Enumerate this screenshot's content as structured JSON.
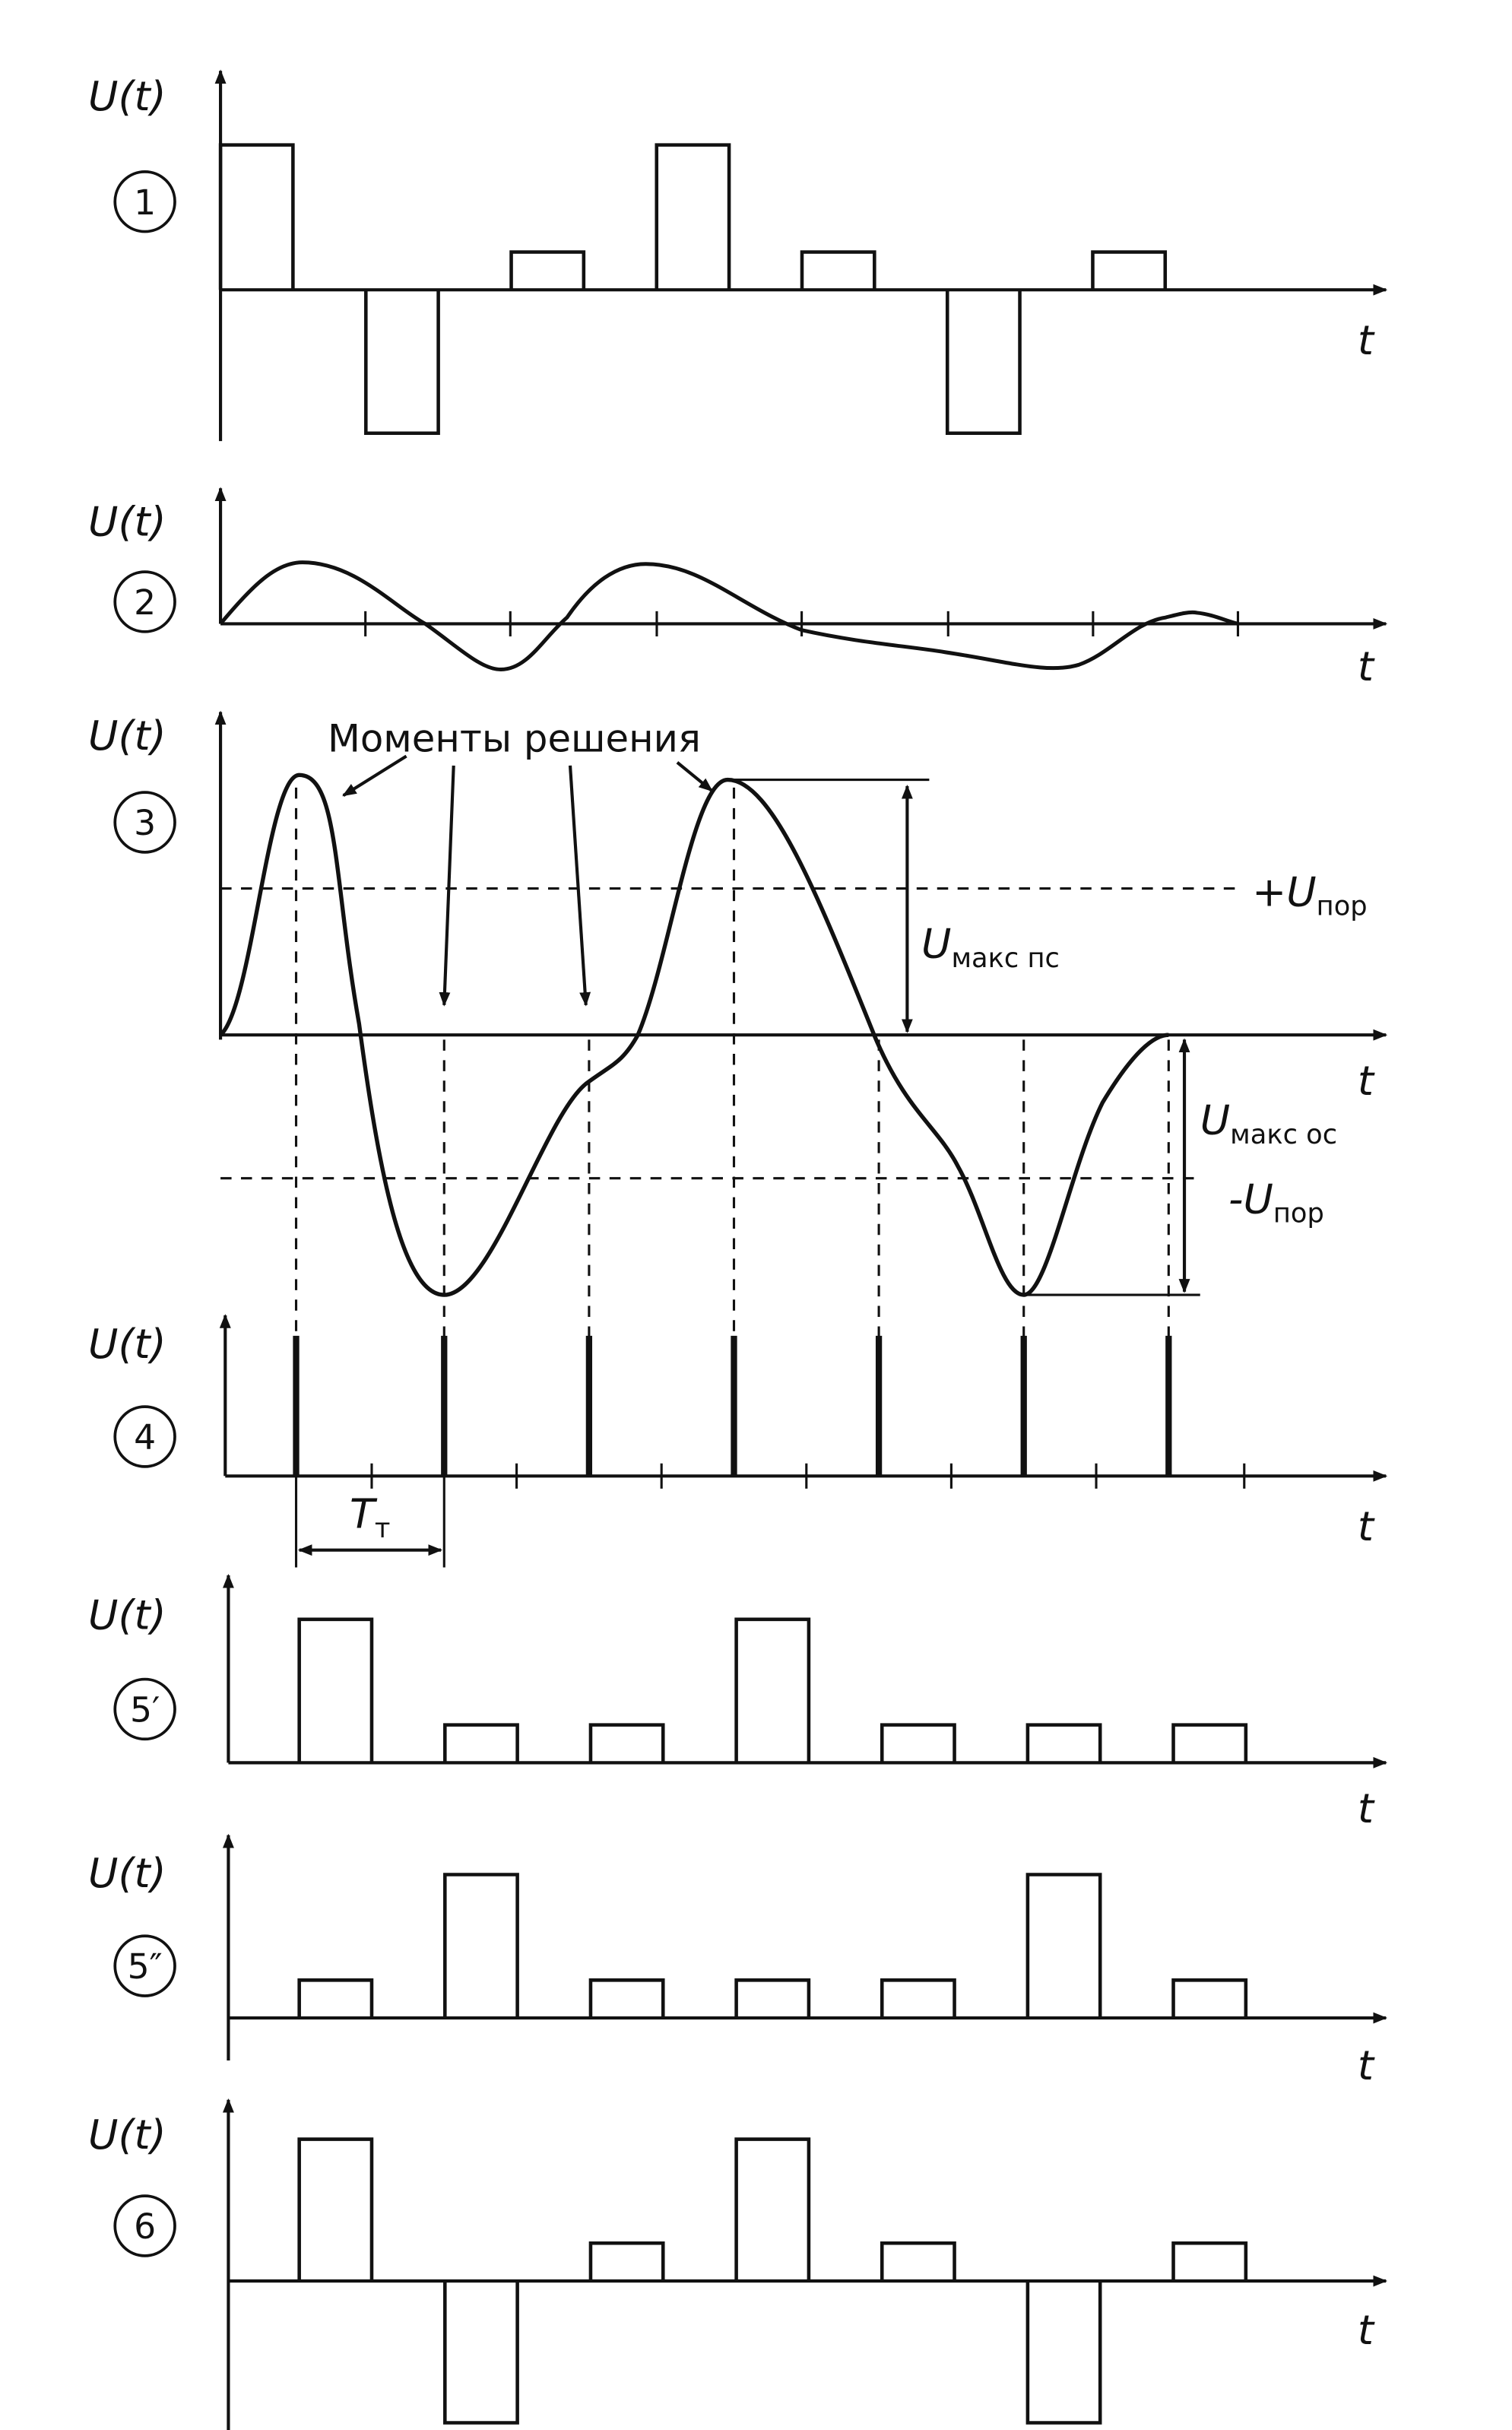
{
  "panels": [
    {
      "ylabel": "U(t)",
      "number": "1",
      "xlabel": "t"
    },
    {
      "ylabel": "U(t)",
      "number": "2",
      "xlabel": "t"
    },
    {
      "ylabel": "U(t)",
      "number": "3",
      "xlabel": "t"
    },
    {
      "ylabel": "U(t)",
      "number": "4",
      "xlabel": "t"
    },
    {
      "ylabel": "U(t)",
      "number": "5′",
      "xlabel": "t"
    },
    {
      "ylabel": "U(t)",
      "number": "5″",
      "xlabel": "t"
    },
    {
      "ylabel": "U(t)",
      "number": "6",
      "xlabel": "t"
    }
  ],
  "annotations": {
    "decision_moments": "Моменты решения",
    "plus_threshold": {
      "main": "+U",
      "sub": "пор"
    },
    "minus_threshold": {
      "main": "-U",
      "sub": "пор"
    },
    "max_ps": {
      "main": "U",
      "sub": "макс пс"
    },
    "max_os": {
      "main": "U",
      "sub": "макс ос"
    },
    "period": {
      "main": "T",
      "sub": "т"
    }
  }
}
